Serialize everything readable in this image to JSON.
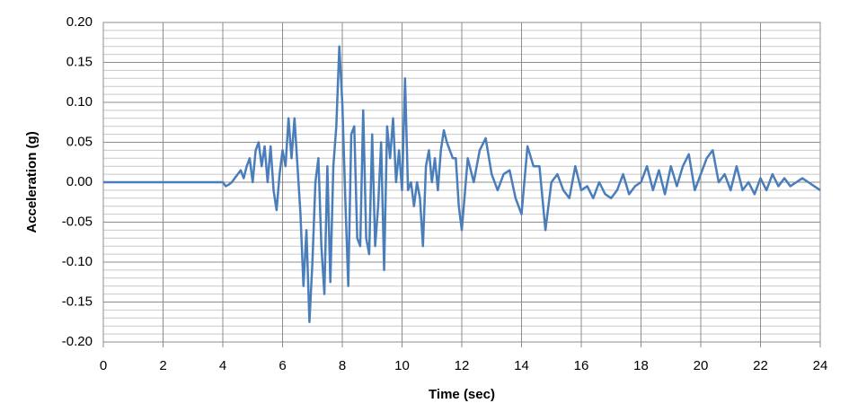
{
  "chart_data": {
    "type": "line",
    "xlabel": "Time (sec)",
    "ylabel": "Acceleration (g)",
    "x": [
      0,
      4.0,
      4.1,
      4.2,
      4.3,
      4.4,
      4.5,
      4.6,
      4.7,
      4.8,
      4.9,
      5.0,
      5.1,
      5.2,
      5.3,
      5.4,
      5.5,
      5.6,
      5.7,
      5.8,
      5.9,
      6.0,
      6.1,
      6.2,
      6.3,
      6.4,
      6.5,
      6.6,
      6.7,
      6.8,
      6.9,
      7.0,
      7.1,
      7.2,
      7.3,
      7.4,
      7.5,
      7.6,
      7.7,
      7.8,
      7.9,
      8.0,
      8.1,
      8.2,
      8.3,
      8.4,
      8.5,
      8.6,
      8.7,
      8.8,
      8.9,
      9.0,
      9.1,
      9.2,
      9.3,
      9.4,
      9.5,
      9.6,
      9.7,
      9.8,
      9.9,
      10.0,
      10.1,
      10.2,
      10.3,
      10.4,
      10.5,
      10.6,
      10.7,
      10.8,
      10.9,
      11.0,
      11.1,
      11.2,
      11.3,
      11.4,
      11.5,
      11.6,
      11.7,
      11.8,
      11.9,
      12.0,
      12.2,
      12.4,
      12.6,
      12.8,
      13.0,
      13.2,
      13.4,
      13.6,
      13.8,
      14.0,
      14.2,
      14.4,
      14.6,
      14.8,
      15.0,
      15.2,
      15.4,
      15.6,
      15.8,
      16.0,
      16.2,
      16.4,
      16.6,
      16.8,
      17.0,
      17.2,
      17.4,
      17.6,
      17.8,
      18.0,
      18.2,
      18.4,
      18.6,
      18.8,
      19.0,
      19.2,
      19.4,
      19.6,
      19.8,
      20.0,
      20.2,
      20.4,
      20.6,
      20.8,
      21.0,
      21.2,
      21.4,
      21.6,
      21.8,
      22.0,
      22.2,
      22.4,
      22.6,
      22.8,
      23.0,
      23.2,
      23.4,
      23.6,
      23.8,
      24.0
    ],
    "series": [
      {
        "color": "#4a7ebb",
        "values": [
          0,
          0,
          -0.005,
          -0.003,
          0,
          0.005,
          0.01,
          0.015,
          0.005,
          0.02,
          0.03,
          0,
          0.04,
          0.05,
          0.02,
          0.045,
          0,
          0.045,
          -0.01,
          -0.035,
          0.01,
          0.04,
          0.02,
          0.08,
          0.03,
          0.08,
          0.02,
          -0.04,
          -0.13,
          -0.06,
          -0.175,
          -0.1,
          0,
          0.03,
          -0.08,
          -0.14,
          0.02,
          -0.125,
          0.02,
          0.07,
          0.17,
          0.1,
          -0.02,
          -0.13,
          0.06,
          0.07,
          -0.07,
          -0.08,
          0.09,
          -0.07,
          -0.09,
          0.06,
          -0.08,
          -0.03,
          0.05,
          -0.11,
          0.07,
          0.03,
          0.08,
          0,
          0.04,
          -0.01,
          0.13,
          -0.01,
          0,
          -0.03,
          0,
          -0.02,
          -0.08,
          0.02,
          0.04,
          0,
          0.03,
          -0.01,
          0.04,
          0.065,
          0.05,
          0.04,
          0.03,
          0.03,
          -0.03,
          -0.06,
          0.03,
          0,
          0.04,
          0.055,
          0.01,
          -0.01,
          0.01,
          0.015,
          -0.02,
          -0.04,
          0.045,
          0.02,
          0.02,
          -0.06,
          0,
          0.01,
          -0.01,
          -0.02,
          0.02,
          -0.01,
          -0.005,
          -0.02,
          0,
          -0.015,
          -0.02,
          -0.01,
          0.01,
          -0.015,
          -0.005,
          0,
          0.02,
          -0.01,
          0.015,
          -0.015,
          0.02,
          -0.005,
          0.02,
          0.035,
          -0.01,
          0.01,
          0.03,
          0.04,
          0,
          0.01,
          -0.01,
          0.02,
          -0.01,
          0,
          -0.015,
          0.005,
          -0.01,
          0.01,
          -0.005,
          0.005,
          -0.005,
          0,
          0.005,
          0,
          -0.005,
          -0.01
        ]
      }
    ],
    "xlim": [
      0,
      24
    ],
    "xticks": [
      0,
      2,
      4,
      6,
      8,
      10,
      12,
      14,
      16,
      18,
      20,
      22,
      24
    ],
    "ylim": [
      -0.2,
      0.2
    ],
    "yticks": [
      {
        "value": -0.2,
        "label": "-0.20"
      },
      {
        "value": -0.15,
        "label": "-0.15"
      },
      {
        "value": -0.1,
        "label": "-0.10"
      },
      {
        "value": -0.05,
        "label": "-0.05"
      },
      {
        "value": 0,
        "label": "0.00"
      },
      {
        "value": 0.05,
        "label": "0.05"
      },
      {
        "value": 0.1,
        "label": "0.10"
      },
      {
        "value": 0.15,
        "label": "0.15"
      },
      {
        "value": 0.2,
        "label": "0.20"
      }
    ],
    "grid": true
  }
}
